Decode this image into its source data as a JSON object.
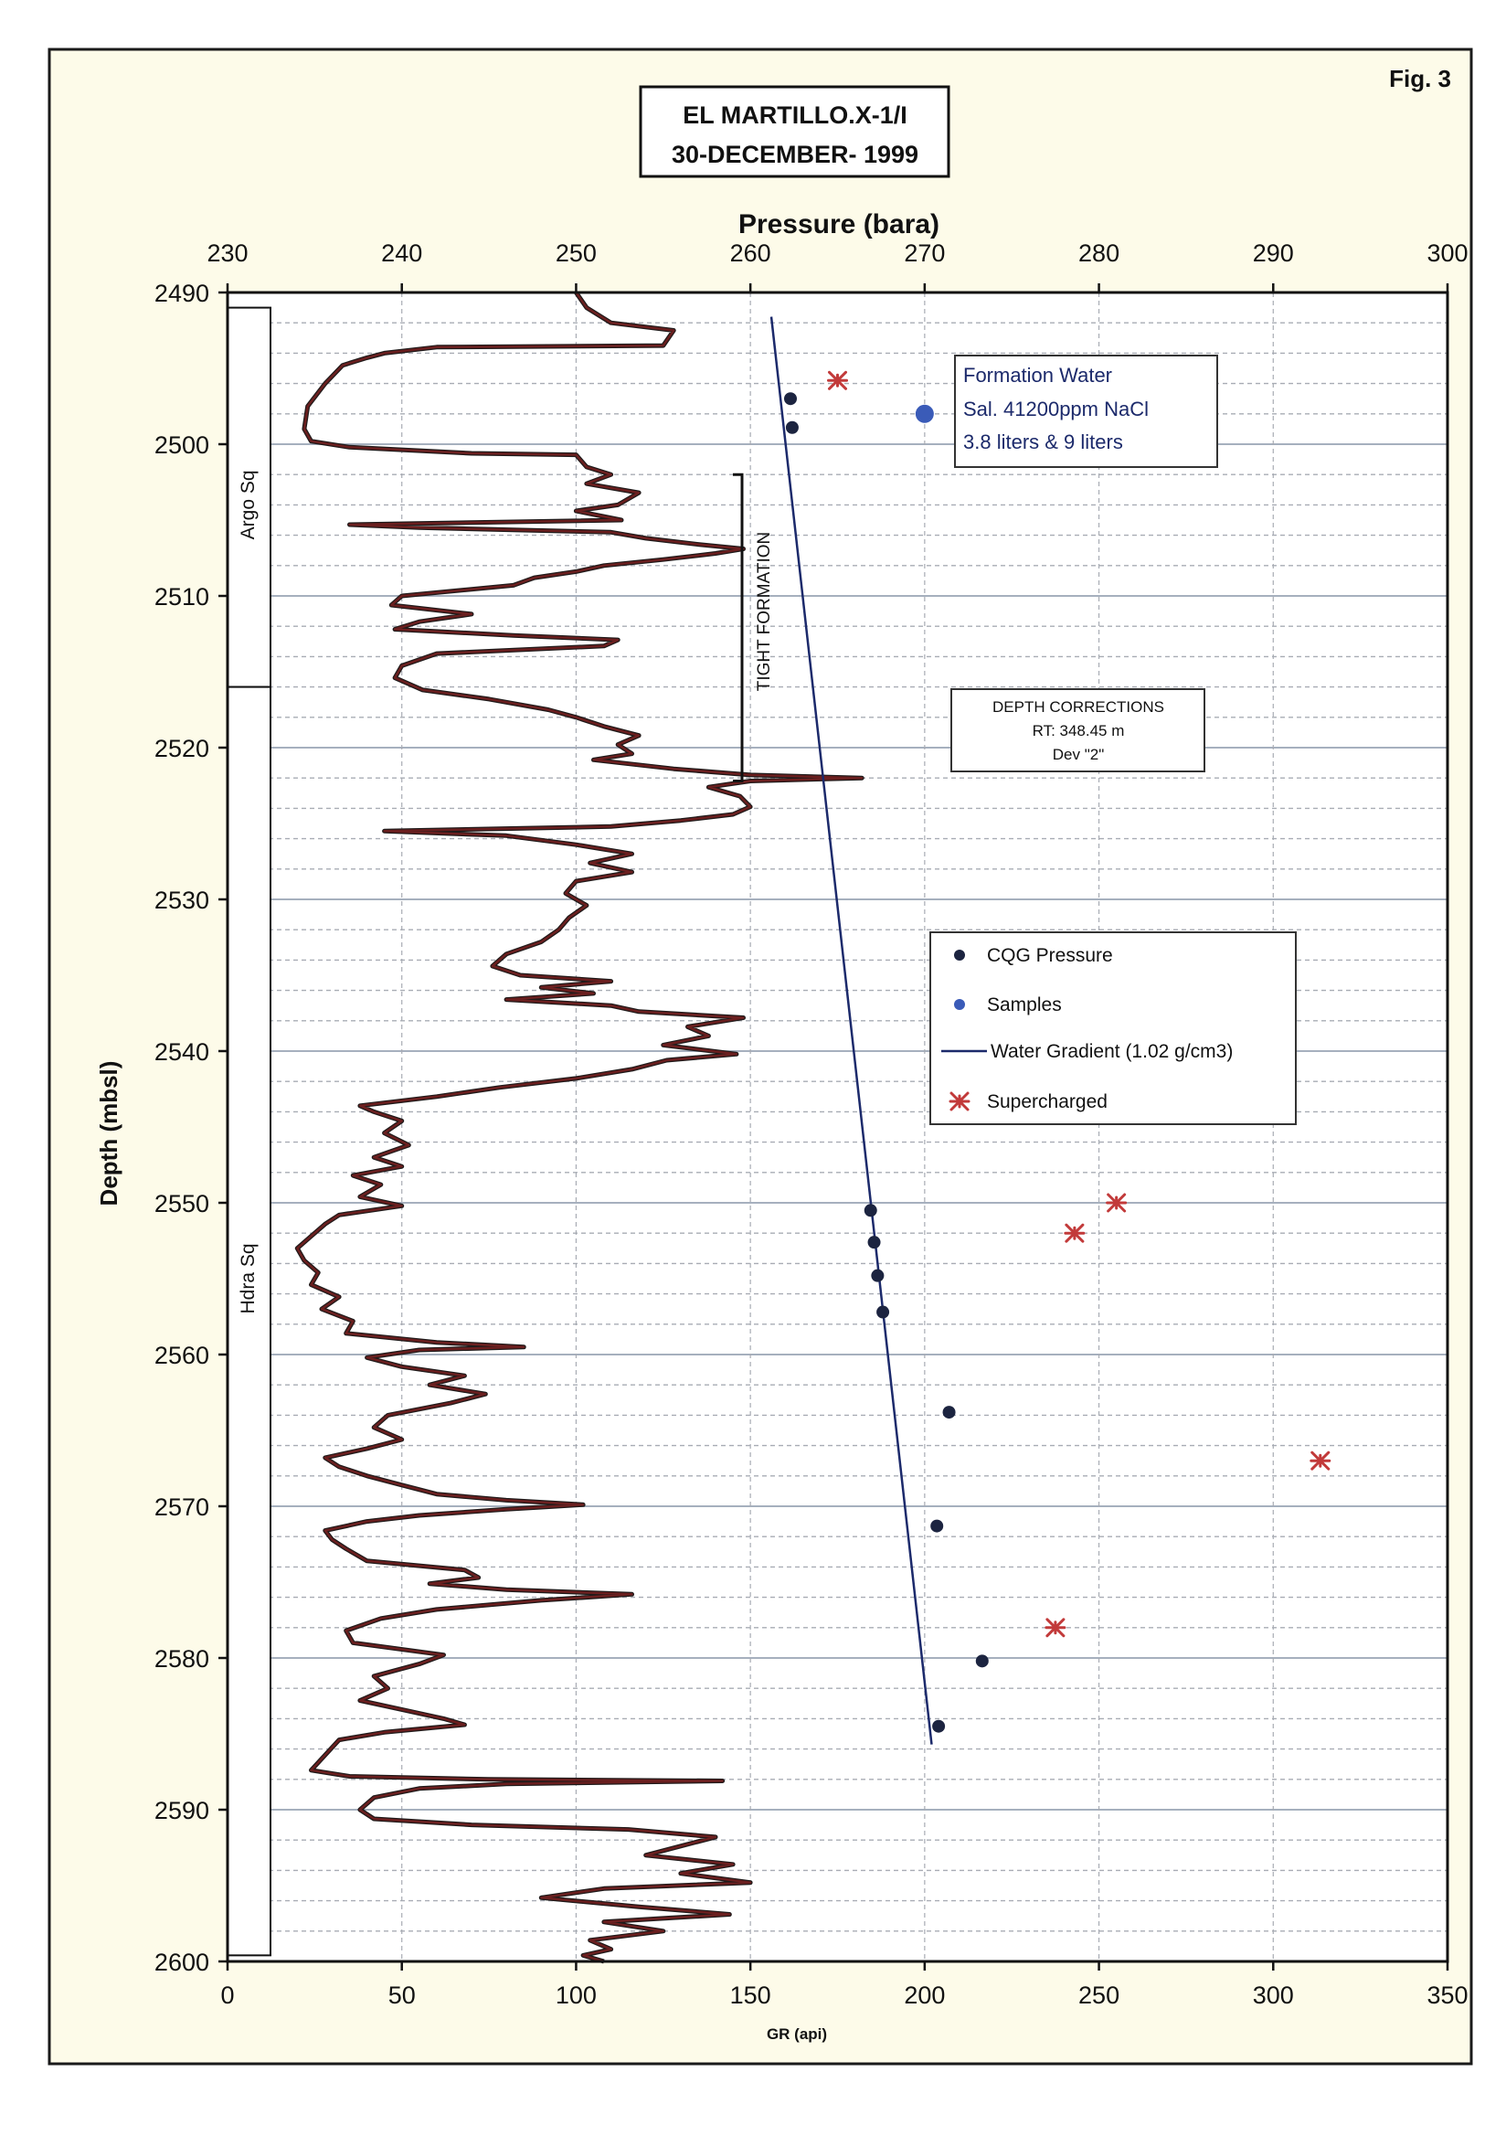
{
  "figure_label": "Fig. 3",
  "title": {
    "line1": "EL MARTILLO.X-1/I",
    "line2": "30-DECEMBER- 1999"
  },
  "colors": {
    "paper": "#fdfbe9",
    "gr_curve": "#6b1f1f",
    "gr_curve_shadow": "#1f1a1a",
    "pressure_point": "#1c2440",
    "sample_point": "#3a5bb8",
    "supercharged": "#c23a3a",
    "gradient_line": "#1c2a6b",
    "grid_major": "#9aa4b4",
    "grid_minor": "#a8acb4"
  },
  "chart_data": {
    "type": "scatter",
    "y_axis": {
      "label": "Depth (mbsl)",
      "min": 2490,
      "max": 2600,
      "inverted": true,
      "ticks": [
        "2490",
        "2500",
        "2510",
        "2520",
        "2530",
        "2540",
        "2550",
        "2560",
        "2570",
        "2580",
        "2590",
        "2600"
      ]
    },
    "x_top_axis": {
      "label": "Pressure (bara)",
      "min": 230,
      "max": 300,
      "ticks": [
        "230",
        "240",
        "250",
        "260",
        "270",
        "280",
        "290",
        "300"
      ]
    },
    "x_bottom_axis": {
      "label": "GR (api)",
      "min": 0,
      "max": 350,
      "ticks": [
        "0",
        "50",
        "100",
        "150",
        "200",
        "250",
        "300",
        "350"
      ]
    },
    "legend": {
      "placement": "middle-right",
      "items": [
        {
          "label": "CQG Pressure",
          "kind": "pressure"
        },
        {
          "label": "Samples",
          "kind": "sample"
        },
        {
          "label": "Water Gradient (1.02 g/cm3)",
          "kind": "line"
        },
        {
          "label": "Supercharged",
          "kind": "supercharged"
        }
      ]
    },
    "series": [
      {
        "name": "CQG Pressure",
        "axis": "pressure",
        "points": [
          [
            262.3,
            2497.0
          ],
          [
            262.4,
            2498.9
          ],
          [
            266.9,
            2550.5
          ],
          [
            267.1,
            2552.6
          ],
          [
            267.3,
            2554.8
          ],
          [
            267.6,
            2557.2
          ],
          [
            271.4,
            2563.8
          ],
          [
            270.7,
            2571.3
          ],
          [
            273.3,
            2580.2
          ],
          [
            270.8,
            2584.5
          ]
        ]
      },
      {
        "name": "Samples",
        "axis": "pressure",
        "points": [
          [
            270.0,
            2498.0
          ]
        ]
      },
      {
        "name": "Supercharged",
        "axis": "pressure",
        "points": [
          [
            265.0,
            2495.8
          ],
          [
            281.0,
            2550.0
          ],
          [
            278.6,
            2552.0
          ],
          [
            292.7,
            2567.0
          ],
          [
            277.5,
            2578.0
          ]
        ]
      },
      {
        "name": "Water Gradient (1.02 g/cm3)",
        "axis": "pressure",
        "type": "line",
        "points": [
          [
            261.2,
            2491.6
          ],
          [
            270.4,
            2585.7
          ]
        ]
      },
      {
        "name": "GR",
        "axis": "gr",
        "type": "line",
        "points": [
          [
            100,
            2490.0
          ],
          [
            103,
            2491.0
          ],
          [
            110,
            2492.0
          ],
          [
            128,
            2492.5
          ],
          [
            125,
            2493.5
          ],
          [
            60,
            2493.6
          ],
          [
            45,
            2494.0
          ],
          [
            40,
            2494.3
          ],
          [
            33,
            2494.8
          ],
          [
            28,
            2496.0
          ],
          [
            23,
            2497.5
          ],
          [
            22,
            2499.0
          ],
          [
            24,
            2499.8
          ],
          [
            35,
            2500.2
          ],
          [
            70,
            2500.6
          ],
          [
            100,
            2500.7
          ],
          [
            103,
            2501.5
          ],
          [
            110,
            2502.0
          ],
          [
            103,
            2502.6
          ],
          [
            118,
            2503.2
          ],
          [
            112,
            2504.0
          ],
          [
            100,
            2504.4
          ],
          [
            113,
            2505.0
          ],
          [
            35,
            2505.3
          ],
          [
            55,
            2505.5
          ],
          [
            110,
            2505.8
          ],
          [
            120,
            2506.2
          ],
          [
            135,
            2506.6
          ],
          [
            148,
            2506.9
          ],
          [
            140,
            2507.2
          ],
          [
            125,
            2507.6
          ],
          [
            108,
            2508.0
          ],
          [
            100,
            2508.4
          ],
          [
            88,
            2508.8
          ],
          [
            82,
            2509.3
          ],
          [
            50,
            2510.0
          ],
          [
            47,
            2510.6
          ],
          [
            70,
            2511.2
          ],
          [
            55,
            2511.7
          ],
          [
            48,
            2512.2
          ],
          [
            82,
            2512.6
          ],
          [
            112,
            2512.9
          ],
          [
            108,
            2513.3
          ],
          [
            60,
            2513.8
          ],
          [
            50,
            2514.6
          ],
          [
            48,
            2515.4
          ],
          [
            56,
            2516.2
          ],
          [
            75,
            2516.8
          ],
          [
            92,
            2517.5
          ],
          [
            100,
            2518.0
          ],
          [
            108,
            2518.6
          ],
          [
            118,
            2519.2
          ],
          [
            112,
            2519.8
          ],
          [
            116,
            2520.4
          ],
          [
            105,
            2520.8
          ],
          [
            128,
            2521.4
          ],
          [
            150,
            2521.8
          ],
          [
            182,
            2522.0
          ],
          [
            150,
            2522.2
          ],
          [
            138,
            2522.6
          ],
          [
            147,
            2523.2
          ],
          [
            150,
            2523.9
          ],
          [
            145,
            2524.4
          ],
          [
            130,
            2524.8
          ],
          [
            110,
            2525.2
          ],
          [
            45,
            2525.5
          ],
          [
            80,
            2525.8
          ],
          [
            100,
            2526.4
          ],
          [
            116,
            2527.0
          ],
          [
            104,
            2527.6
          ],
          [
            116,
            2528.2
          ],
          [
            100,
            2528.8
          ],
          [
            97,
            2529.6
          ],
          [
            103,
            2530.4
          ],
          [
            98,
            2531.2
          ],
          [
            95,
            2532.0
          ],
          [
            90,
            2532.8
          ],
          [
            80,
            2533.6
          ],
          [
            76,
            2534.4
          ],
          [
            84,
            2535.0
          ],
          [
            110,
            2535.4
          ],
          [
            90,
            2535.8
          ],
          [
            105,
            2536.2
          ],
          [
            80,
            2536.6
          ],
          [
            110,
            2537.0
          ],
          [
            118,
            2537.4
          ],
          [
            148,
            2537.8
          ],
          [
            132,
            2538.4
          ],
          [
            138,
            2539.0
          ],
          [
            125,
            2539.6
          ],
          [
            146,
            2540.2
          ],
          [
            126,
            2540.6
          ],
          [
            116,
            2541.2
          ],
          [
            100,
            2541.8
          ],
          [
            78,
            2542.4
          ],
          [
            60,
            2543.0
          ],
          [
            38,
            2543.6
          ],
          [
            42,
            2544.0
          ],
          [
            50,
            2544.6
          ],
          [
            45,
            2545.4
          ],
          [
            52,
            2546.2
          ],
          [
            42,
            2547.0
          ],
          [
            50,
            2547.6
          ],
          [
            36,
            2548.2
          ],
          [
            44,
            2548.8
          ],
          [
            38,
            2549.6
          ],
          [
            50,
            2550.2
          ],
          [
            32,
            2550.8
          ],
          [
            28,
            2551.4
          ],
          [
            24,
            2552.2
          ],
          [
            20,
            2553.0
          ],
          [
            22,
            2553.8
          ],
          [
            26,
            2554.6
          ],
          [
            24,
            2555.4
          ],
          [
            32,
            2556.2
          ],
          [
            27,
            2557.0
          ],
          [
            36,
            2557.8
          ],
          [
            34,
            2558.6
          ],
          [
            60,
            2559.2
          ],
          [
            85,
            2559.5
          ],
          [
            55,
            2559.7
          ],
          [
            40,
            2560.2
          ],
          [
            50,
            2560.8
          ],
          [
            68,
            2561.4
          ],
          [
            58,
            2562.0
          ],
          [
            74,
            2562.6
          ],
          [
            64,
            2563.2
          ],
          [
            46,
            2564.0
          ],
          [
            42,
            2564.8
          ],
          [
            50,
            2565.6
          ],
          [
            40,
            2566.2
          ],
          [
            28,
            2566.8
          ],
          [
            32,
            2567.4
          ],
          [
            40,
            2568.0
          ],
          [
            50,
            2568.6
          ],
          [
            60,
            2569.2
          ],
          [
            80,
            2569.6
          ],
          [
            102,
            2569.9
          ],
          [
            80,
            2570.2
          ],
          [
            55,
            2570.6
          ],
          [
            40,
            2571.0
          ],
          [
            28,
            2571.6
          ],
          [
            30,
            2572.2
          ],
          [
            34,
            2572.8
          ],
          [
            40,
            2573.6
          ],
          [
            68,
            2574.2
          ],
          [
            72,
            2574.7
          ],
          [
            58,
            2575.1
          ],
          [
            80,
            2575.5
          ],
          [
            116,
            2575.8
          ],
          [
            90,
            2576.2
          ],
          [
            60,
            2576.8
          ],
          [
            44,
            2577.4
          ],
          [
            34,
            2578.2
          ],
          [
            36,
            2579.0
          ],
          [
            62,
            2579.8
          ],
          [
            55,
            2580.4
          ],
          [
            42,
            2581.2
          ],
          [
            46,
            2582.0
          ],
          [
            38,
            2582.8
          ],
          [
            50,
            2583.4
          ],
          [
            62,
            2584.0
          ],
          [
            68,
            2584.4
          ],
          [
            45,
            2584.9
          ],
          [
            32,
            2585.4
          ],
          [
            28,
            2586.4
          ],
          [
            24,
            2587.4
          ],
          [
            35,
            2587.8
          ],
          [
            75,
            2588.0
          ],
          [
            142,
            2588.1
          ],
          [
            80,
            2588.3
          ],
          [
            55,
            2588.6
          ],
          [
            42,
            2589.2
          ],
          [
            38,
            2590.0
          ],
          [
            42,
            2590.6
          ],
          [
            70,
            2591.0
          ],
          [
            115,
            2591.3
          ],
          [
            140,
            2591.8
          ],
          [
            130,
            2592.4
          ],
          [
            120,
            2593.0
          ],
          [
            145,
            2593.6
          ],
          [
            130,
            2594.2
          ],
          [
            150,
            2594.8
          ],
          [
            108,
            2595.2
          ],
          [
            90,
            2595.8
          ],
          [
            118,
            2596.4
          ],
          [
            144,
            2596.9
          ],
          [
            108,
            2597.4
          ],
          [
            125,
            2598.0
          ],
          [
            104,
            2598.6
          ],
          [
            110,
            2599.2
          ],
          [
            102,
            2599.6
          ],
          [
            108,
            2600.0
          ]
        ]
      }
    ]
  },
  "annotations": {
    "formation_water": [
      "Formation Water",
      "Sal. 41200ppm NaCl",
      "3.8 liters & 9 liters"
    ],
    "depth_corrections": [
      "DEPTH CORRECTIONS",
      "RT: 348.45 m",
      "Dev \"2\""
    ],
    "tight_formation": "TIGHT FORMATION",
    "zones": [
      {
        "label": "Argo Sq",
        "top": 2491,
        "bottom": 2516
      },
      {
        "label": "Hdra Sq",
        "top": 2516,
        "bottom": 2599.6
      }
    ]
  }
}
